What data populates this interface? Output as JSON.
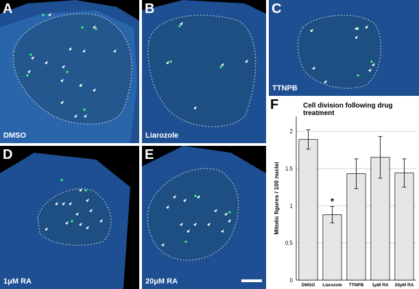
{
  "colors": {
    "tissue": "#2f6fb8",
    "tissue_edge": "#1a4a8f",
    "green_dot": "#3dff6a",
    "background": "#000000",
    "bar_fill": "#e6e6e6"
  },
  "panels": [
    {
      "id": "A",
      "label": "A",
      "condition": "DMSO"
    },
    {
      "id": "B",
      "label": "B",
      "condition": "Liarozole"
    },
    {
      "id": "C",
      "label": "C",
      "condition": "TTNPB"
    },
    {
      "id": "D",
      "label": "D",
      "condition": "1μM RA"
    },
    {
      "id": "E",
      "label": "E",
      "condition": "20μM RA"
    }
  ],
  "chart_panel_label": "F",
  "chart_data": {
    "type": "bar",
    "title": "Cell division following drug treatment",
    "ylabel": "Mitotic figures / 100 nuclei",
    "xlabel": "",
    "categories": [
      "DMSO",
      "Liarozole",
      "TTNPB",
      "1μM RA",
      "20μM RA"
    ],
    "values": [
      1.89,
      0.88,
      1.43,
      1.65,
      1.44
    ],
    "errors": [
      0.13,
      0.11,
      0.2,
      0.28,
      0.19
    ],
    "ylim": [
      0,
      2.2
    ],
    "yticks": [
      "0",
      "0.5",
      "1",
      "1.5",
      "2"
    ],
    "grid": true,
    "annotations": [
      {
        "category": "Liarozole",
        "text": "*"
      }
    ]
  }
}
